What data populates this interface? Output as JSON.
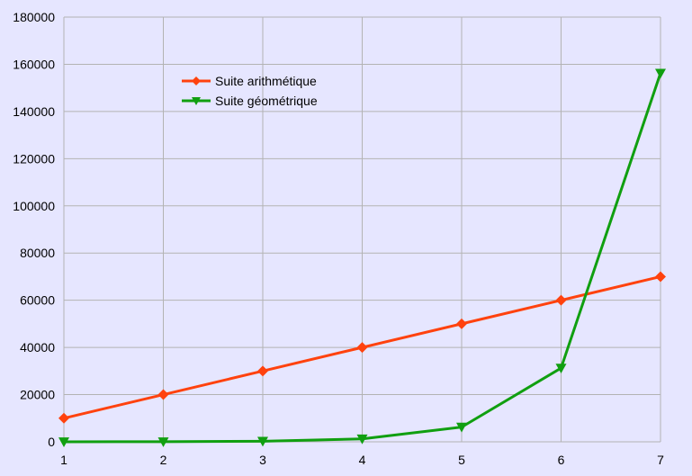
{
  "chart_data": {
    "type": "line",
    "x": [
      1,
      2,
      3,
      4,
      5,
      6,
      7
    ],
    "xlim": [
      1,
      7
    ],
    "ylim": [
      0,
      180000
    ],
    "y_ticks": [
      0,
      20000,
      40000,
      60000,
      80000,
      100000,
      120000,
      140000,
      160000,
      180000
    ],
    "grid": true,
    "legend_placement": "top-left",
    "series": [
      {
        "name": "Suite arithmétique",
        "color": "#ff420e",
        "marker": "diamond",
        "values": [
          10000,
          20000,
          30000,
          40000,
          50000,
          60000,
          70000
        ]
      },
      {
        "name": "Suite géométrique",
        "color": "#109f10",
        "marker": "triangle-down",
        "values": [
          10,
          50,
          250,
          1250,
          6250,
          31250,
          156250
        ]
      }
    ]
  },
  "colors": {
    "background": "#e6e6ff",
    "grid": "#b3b3b3"
  }
}
